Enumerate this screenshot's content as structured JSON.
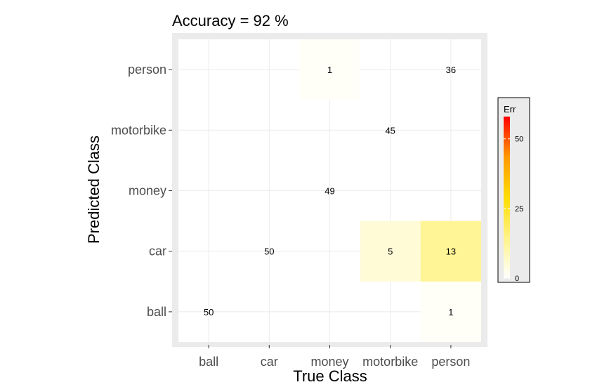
{
  "chart_data": {
    "type": "heatmap",
    "title": "Accuracy =  92 %",
    "xlabel": "True Class",
    "ylabel": "Predicted Class",
    "x_categories": [
      "ball",
      "car",
      "money",
      "motorbike",
      "person"
    ],
    "y_categories": [
      "ball",
      "car",
      "money",
      "motorbike",
      "person"
    ],
    "cells": [
      {
        "x": "ball",
        "y": "ball",
        "value": 50,
        "err": 0
      },
      {
        "x": "person",
        "y": "ball",
        "value": 1,
        "err": 1
      },
      {
        "x": "car",
        "y": "car",
        "value": 50,
        "err": 0
      },
      {
        "x": "motorbike",
        "y": "car",
        "value": 5,
        "err": 5
      },
      {
        "x": "person",
        "y": "car",
        "value": 13,
        "err": 13
      },
      {
        "x": "money",
        "y": "money",
        "value": 49,
        "err": 0
      },
      {
        "x": "motorbike",
        "y": "motorbike",
        "value": 45,
        "err": 0
      },
      {
        "x": "money",
        "y": "person",
        "value": 1,
        "err": 1
      },
      {
        "x": "person",
        "y": "person",
        "value": 36,
        "err": 0
      }
    ],
    "legend": {
      "title": "Err",
      "ticks": [
        0,
        25,
        50
      ],
      "range": [
        0,
        58
      ],
      "colors": [
        "#ffffff",
        "#fff38a",
        "#ffdd00",
        "#ff9900",
        "#ff0000"
      ],
      "placement": "right"
    },
    "panel_background": "#ebebeb",
    "grid": true
  }
}
